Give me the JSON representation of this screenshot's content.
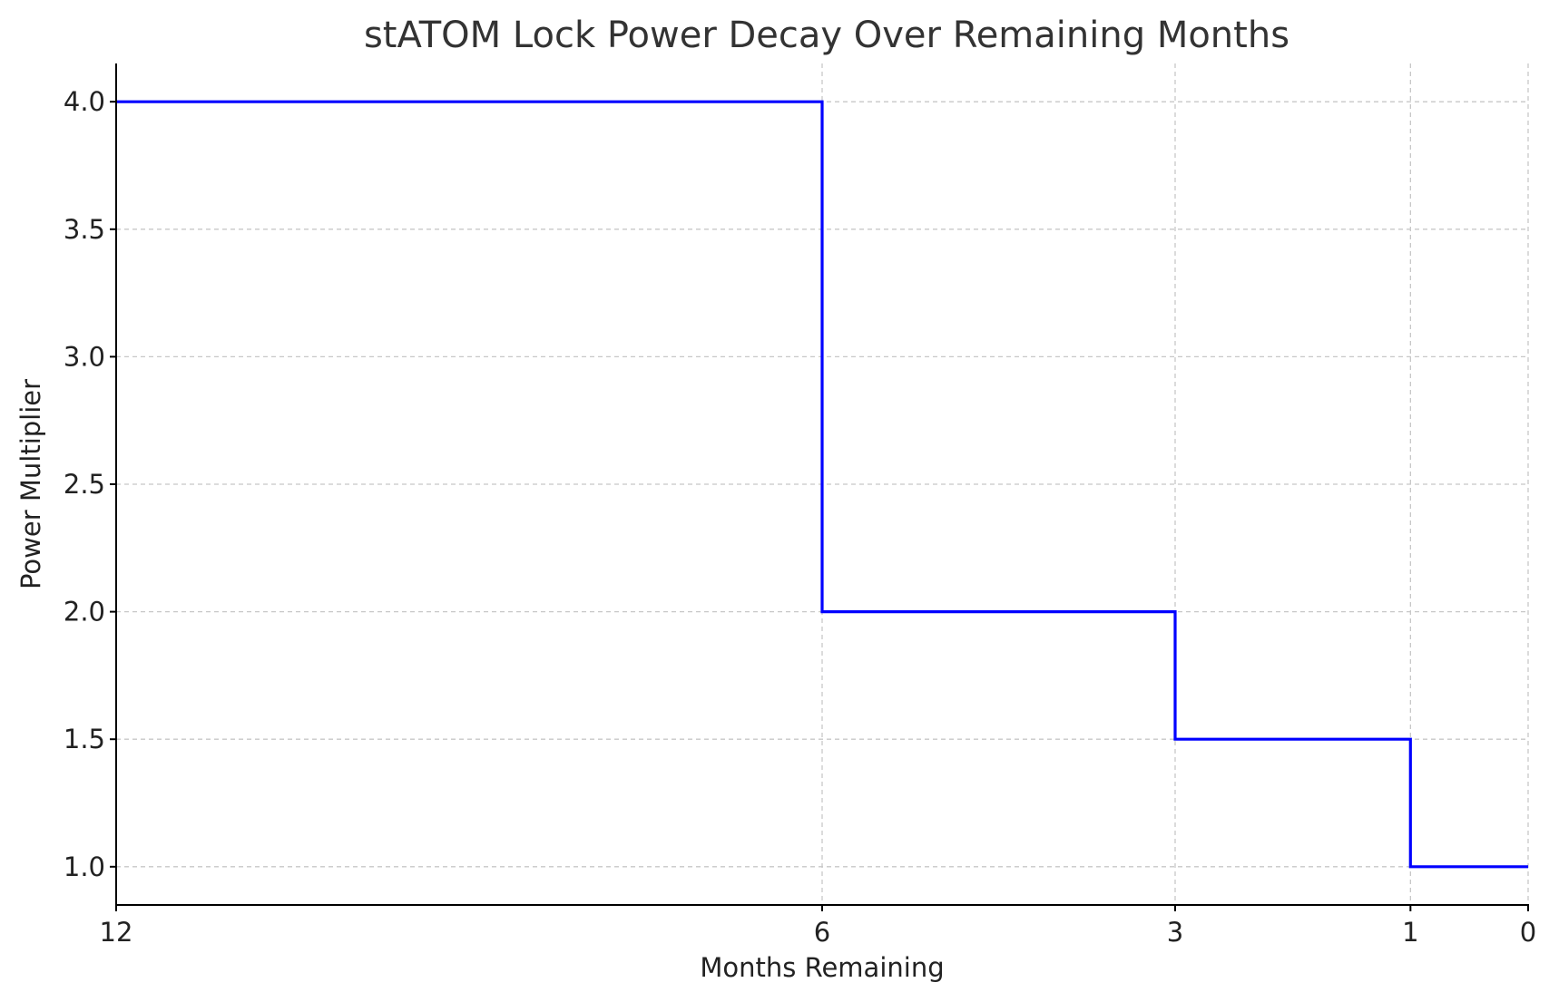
{
  "chart_data": {
    "type": "line",
    "step": true,
    "title": "stATOM Lock Power Decay Over Remaining Months",
    "xlabel": "Months Remaining",
    "ylabel": "Power Multiplier",
    "x_reversed": true,
    "xlim": [
      12,
      0
    ],
    "ylim": [
      0.85,
      4.15
    ],
    "x_ticks": [
      {
        "value": 12,
        "label": "12"
      },
      {
        "value": 6,
        "label": "6"
      },
      {
        "value": 3,
        "label": "3"
      },
      {
        "value": 1,
        "label": "1"
      },
      {
        "value": 0,
        "label": "0"
      }
    ],
    "y_ticks": [
      {
        "value": 1.0,
        "label": "1.0"
      },
      {
        "value": 1.5,
        "label": "1.5"
      },
      {
        "value": 2.0,
        "label": "2.0"
      },
      {
        "value": 2.5,
        "label": "2.5"
      },
      {
        "value": 3.0,
        "label": "3.0"
      },
      {
        "value": 3.5,
        "label": "3.5"
      },
      {
        "value": 4.0,
        "label": "4.0"
      }
    ],
    "grid": true,
    "series": [
      {
        "color": "#0000ff",
        "points": [
          {
            "x": 12,
            "y": 4.0
          },
          {
            "x": 6,
            "y": 4.0
          },
          {
            "x": 6,
            "y": 2.0
          },
          {
            "x": 3,
            "y": 2.0
          },
          {
            "x": 3,
            "y": 1.5
          },
          {
            "x": 1,
            "y": 1.5
          },
          {
            "x": 1,
            "y": 1.0
          },
          {
            "x": 0,
            "y": 1.0
          }
        ]
      }
    ]
  }
}
